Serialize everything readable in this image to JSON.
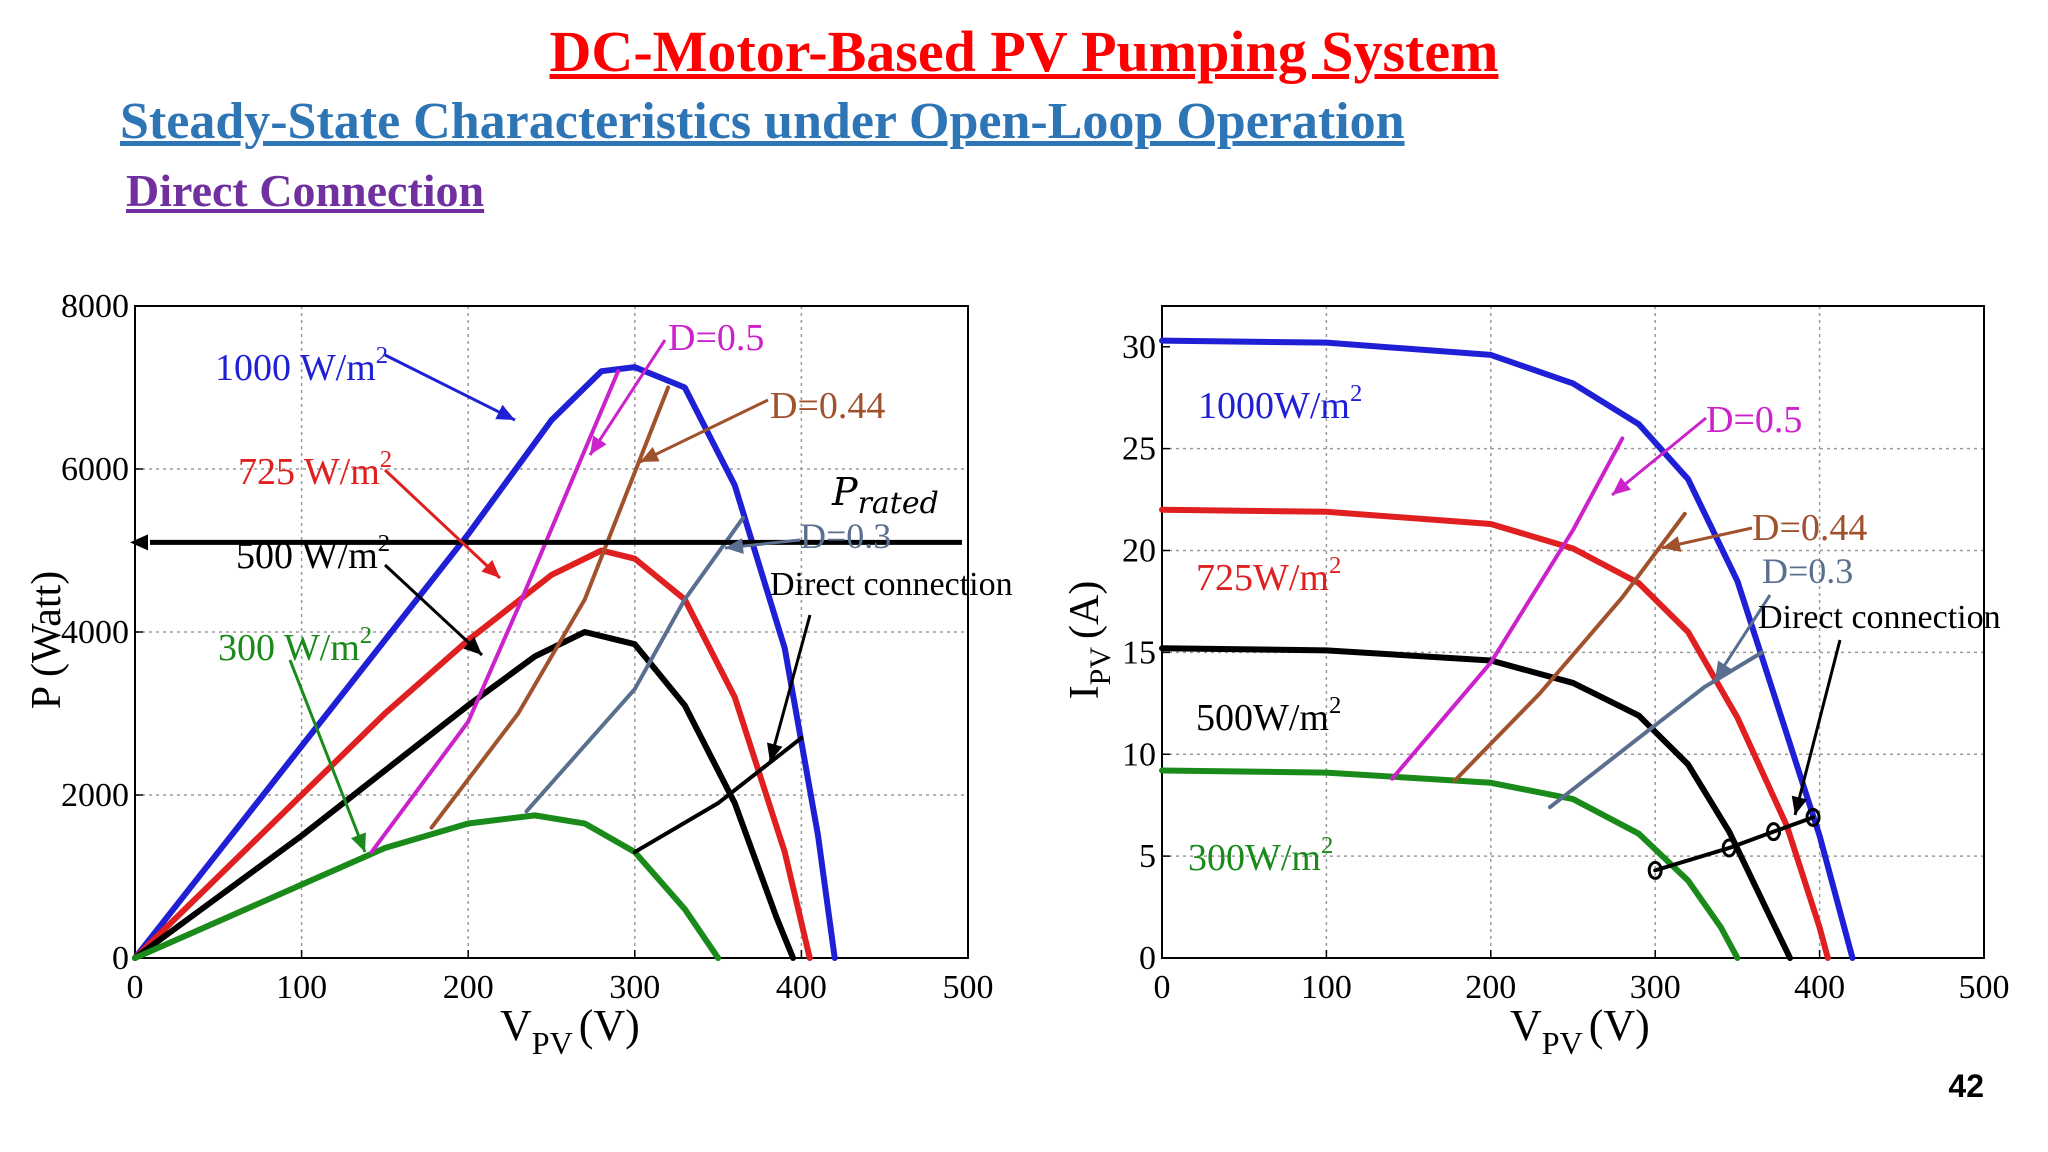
{
  "slide": {
    "title": "DC-Motor-Based PV Pumping System",
    "subtitle": "Steady-State Characteristics under Open-Loop Operation",
    "section": "Direct Connection",
    "page_number": "42"
  },
  "colors": {
    "title": "#ff0000",
    "subtitle": "#2e75b6",
    "section": "#7030a0",
    "g1000": "#1f1fd6",
    "g725": "#e02020",
    "g500": "#000000",
    "g300": "#1a8a1a",
    "d05": "#cc22cc",
    "d044": "#a0522d",
    "d03": "#5a6f8f",
    "direct": "#000000"
  },
  "chart_data": [
    {
      "type": "line",
      "xlabel": "V",
      "xlabel_sub": "PV",
      "xlabel_unit": "(V)",
      "ylabel": "P (Watt)",
      "xlim": [
        0,
        500
      ],
      "ylim": [
        0,
        8000
      ],
      "xticks": [
        "0",
        "100",
        "200",
        "300",
        "400",
        "500"
      ],
      "yticks": [
        "0",
        "2000",
        "4000",
        "6000",
        "8000"
      ],
      "grid": true,
      "series": [
        {
          "name": "1000 W/m",
          "sup": "2",
          "color_key": "g1000",
          "x": [
            0,
            50,
            100,
            150,
            200,
            250,
            280,
            300,
            330,
            360,
            390,
            410,
            420
          ],
          "y": [
            0,
            1300,
            2600,
            3900,
            5200,
            6600,
            7200,
            7250,
            7000,
            5800,
            3800,
            1500,
            0
          ]
        },
        {
          "name": "725 W/m",
          "sup": "2",
          "color_key": "g725",
          "x": [
            0,
            50,
            100,
            150,
            200,
            250,
            280,
            300,
            330,
            360,
            390,
            405
          ],
          "y": [
            0,
            1000,
            2000,
            3000,
            3900,
            4700,
            5000,
            4900,
            4400,
            3200,
            1300,
            0
          ]
        },
        {
          "name": "500 W/m",
          "sup": "2",
          "color_key": "g500",
          "x": [
            0,
            50,
            100,
            150,
            200,
            240,
            270,
            300,
            330,
            360,
            385,
            395
          ],
          "y": [
            0,
            750,
            1500,
            2300,
            3100,
            3700,
            4000,
            3850,
            3100,
            1900,
            500,
            0
          ]
        },
        {
          "name": "300 W/m",
          "sup": "2",
          "color_key": "g300",
          "x": [
            0,
            50,
            100,
            150,
            200,
            240,
            270,
            300,
            330,
            350
          ],
          "y": [
            0,
            450,
            900,
            1350,
            1650,
            1750,
            1650,
            1300,
            600,
            0
          ]
        },
        {
          "name": "D=0.5",
          "color_key": "d05",
          "x": [
            142,
            200,
            230,
            290
          ],
          "y": [
            1300,
            2900,
            4300,
            7200
          ]
        },
        {
          "name": "D=0.44",
          "color_key": "d044",
          "x": [
            178,
            230,
            270,
            320
          ],
          "y": [
            1600,
            3000,
            4400,
            7000
          ]
        },
        {
          "name": "D=0.3",
          "color_key": "d03",
          "x": [
            235,
            300,
            330,
            365
          ],
          "y": [
            1800,
            3300,
            4400,
            5400
          ]
        },
        {
          "name": "Direct connection",
          "color_key": "direct",
          "x": [
            300,
            350,
            400
          ],
          "y": [
            1300,
            1900,
            2700
          ]
        }
      ],
      "hline": {
        "name": "P",
        "name_sub": "rated",
        "y": 5100
      },
      "annotations": [
        "1000 W/m",
        "725 W/m",
        "500 W/m",
        "300 W/m",
        "D=0.5",
        "D=0.44",
        "D=0.3",
        "Direct connection"
      ]
    },
    {
      "type": "line",
      "xlabel": "V",
      "xlabel_sub": "PV",
      "xlabel_unit": "(V)",
      "ylabel": "I",
      "ylabel_sub": "PV",
      "ylabel_unit": "(A)",
      "xlim": [
        0,
        500
      ],
      "ylim": [
        0,
        32
      ],
      "xticks": [
        "0",
        "100",
        "200",
        "300",
        "400",
        "500"
      ],
      "yticks": [
        "0",
        "5",
        "10",
        "15",
        "20",
        "25",
        "30"
      ],
      "grid": true,
      "series": [
        {
          "name": "1000W/m",
          "sup": "2",
          "color_key": "g1000",
          "x": [
            0,
            100,
            200,
            250,
            290,
            320,
            350,
            380,
            400,
            415,
            420
          ],
          "y": [
            30.3,
            30.2,
            29.6,
            28.2,
            26.2,
            23.5,
            18.5,
            11,
            6,
            1.5,
            0
          ]
        },
        {
          "name": "725W/m",
          "sup": "2",
          "color_key": "g725",
          "x": [
            0,
            100,
            200,
            250,
            290,
            320,
            350,
            380,
            400,
            405
          ],
          "y": [
            22,
            21.9,
            21.3,
            20.1,
            18.4,
            16,
            11.8,
            6.5,
            1.5,
            0
          ]
        },
        {
          "name": "500W/m",
          "sup": "2",
          "color_key": "g500",
          "x": [
            0,
            100,
            200,
            250,
            290,
            320,
            345,
            370,
            382
          ],
          "y": [
            15.2,
            15.1,
            14.6,
            13.5,
            11.9,
            9.5,
            6.2,
            2,
            0
          ]
        },
        {
          "name": "300W/m",
          "sup": "2",
          "color_key": "g300",
          "x": [
            0,
            100,
            200,
            250,
            290,
            320,
            340,
            350
          ],
          "y": [
            9.2,
            9.1,
            8.6,
            7.8,
            6.1,
            3.8,
            1.5,
            0
          ]
        },
        {
          "name": "D=0.5",
          "color_key": "d05",
          "x": [
            140,
            200,
            250,
            280
          ],
          "y": [
            8.8,
            14.5,
            21,
            25.5
          ]
        },
        {
          "name": "D=0.44",
          "color_key": "d044",
          "x": [
            178,
            230,
            280,
            318
          ],
          "y": [
            8.7,
            13,
            17.7,
            21.8
          ]
        },
        {
          "name": "D=0.3",
          "color_key": "d03",
          "x": [
            236,
            290,
            330,
            365
          ],
          "y": [
            7.4,
            10.8,
            13.3,
            15
          ]
        },
        {
          "name": "Direct connection",
          "color_key": "direct",
          "x": [
            300,
            345,
            372,
            396
          ],
          "y": [
            4.3,
            5.4,
            6.2,
            6.9
          ]
        }
      ],
      "annotations": [
        "1000W/m",
        "725W/m",
        "500W/m",
        "300W/m",
        "D=0.5",
        "D=0.44",
        "D=0.3",
        "Direct connection"
      ]
    }
  ]
}
